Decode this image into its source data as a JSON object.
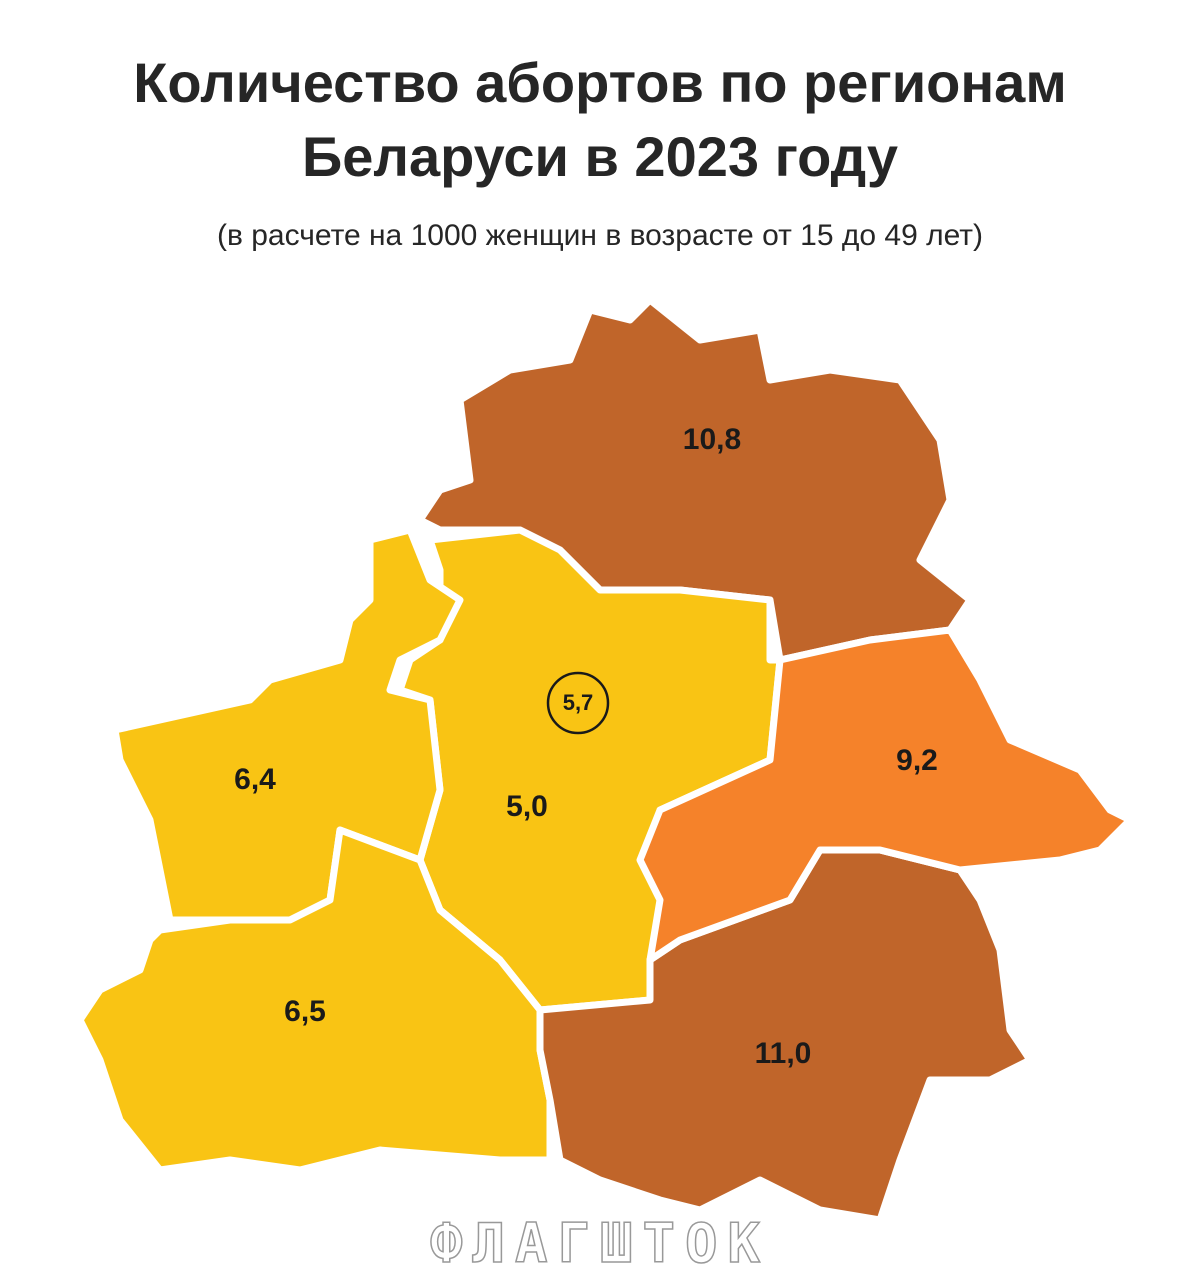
{
  "header": {
    "title_lines": [
      "Количество абортов по регионам",
      "Беларуси в 2023 году"
    ],
    "subtitle": "(в расчете на 1000 женщин в возрасте от 15 до 49 лет)"
  },
  "map": {
    "regions": [
      {
        "label": "10,8"
      },
      {
        "label": "5,0"
      },
      {
        "label": "6,4"
      },
      {
        "label": "6,5"
      },
      {
        "label": "11,0"
      },
      {
        "label": "9,2"
      }
    ],
    "city": {
      "label": "5,7"
    }
  },
  "watermark": "ФЛАГШТОК"
}
